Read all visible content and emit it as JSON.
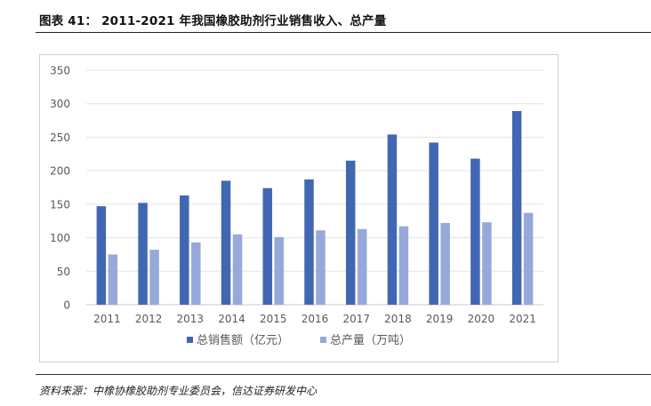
{
  "figure": {
    "title": "图表 41：  2011-2021 年我国橡胶助剂行业销售收入、总产量",
    "source": "资料来源：中橡协橡胶助剂专业委员会，信达证券研发中心"
  },
  "chart_data": {
    "type": "bar",
    "title": "",
    "xlabel": "",
    "ylabel": "",
    "categories": [
      "2011",
      "2012",
      "2013",
      "2014",
      "2015",
      "2016",
      "2017",
      "2018",
      "2019",
      "2020",
      "2021"
    ],
    "series": [
      {
        "name": "总销售额（亿元）",
        "color": "#4267b2",
        "values": [
          147,
          152,
          163,
          185,
          174,
          187,
          215,
          254,
          242,
          218,
          289
        ]
      },
      {
        "name": "总产量（万吨）",
        "color": "#97a8da",
        "values": [
          75,
          82,
          93,
          105,
          101,
          111,
          113,
          117,
          122,
          123,
          137
        ]
      }
    ],
    "ylim": [
      0,
      350
    ],
    "yticks": [
      "0",
      "50",
      "100",
      "150",
      "200",
      "250",
      "300",
      "350"
    ],
    "grid": true,
    "legend_position": "bottom"
  }
}
